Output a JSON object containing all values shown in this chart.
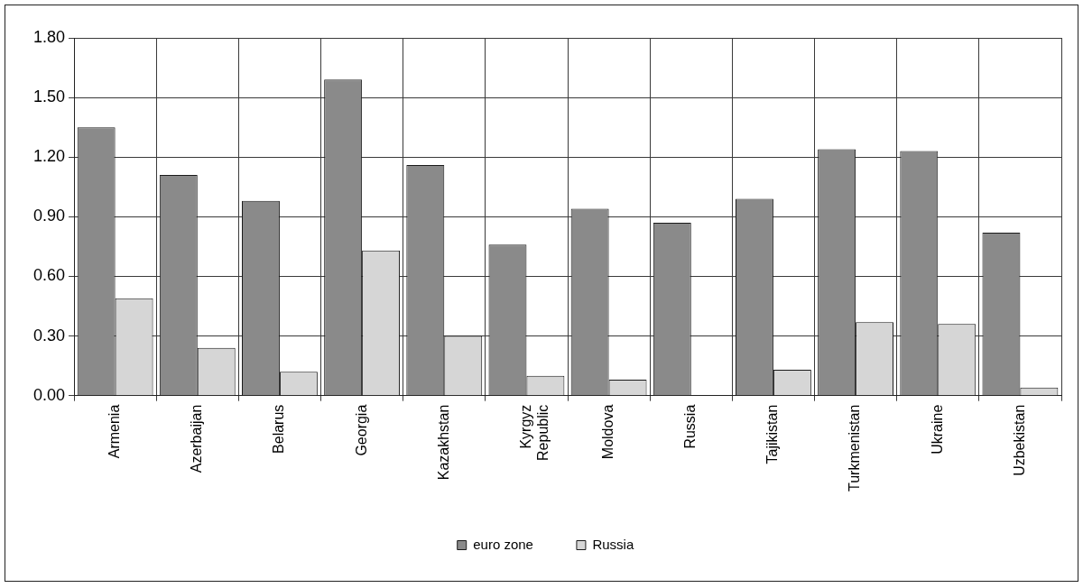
{
  "chart_data": {
    "type": "bar",
    "categories": [
      "Armenia",
      "Azerbaijan",
      "Belarus",
      "Georgia",
      "Kazakhstan",
      "Kyrgyz Republic",
      "Moldova",
      "Russia",
      "Tajikistan",
      "Turkmenistan",
      "Ukraine",
      "Uzbekistan"
    ],
    "series": [
      {
        "name": "euro zone",
        "color": "#8a8a8a",
        "values": [
          1.35,
          1.11,
          0.98,
          1.59,
          1.16,
          0.76,
          0.94,
          0.87,
          0.99,
          1.24,
          1.23,
          0.82
        ]
      },
      {
        "name": "Russia",
        "color": "#d6d6d6",
        "values": [
          0.49,
          0.24,
          0.12,
          0.73,
          0.3,
          0.1,
          0.08,
          null,
          0.13,
          0.37,
          0.36,
          0.04
        ]
      }
    ],
    "ylim": [
      0,
      1.8
    ],
    "yticks": [
      {
        "value": 0,
        "label": "0.00"
      },
      {
        "value": 0.3,
        "label": "0.30"
      },
      {
        "value": 0.6,
        "label": "0.60"
      },
      {
        "value": 0.9,
        "label": "0.90"
      },
      {
        "value": 1.2,
        "label": "1.20"
      },
      {
        "value": 1.5,
        "label": "1.50"
      },
      {
        "value": 1.8,
        "label": "1.80"
      }
    ],
    "grid": true,
    "legend": "bottom"
  }
}
